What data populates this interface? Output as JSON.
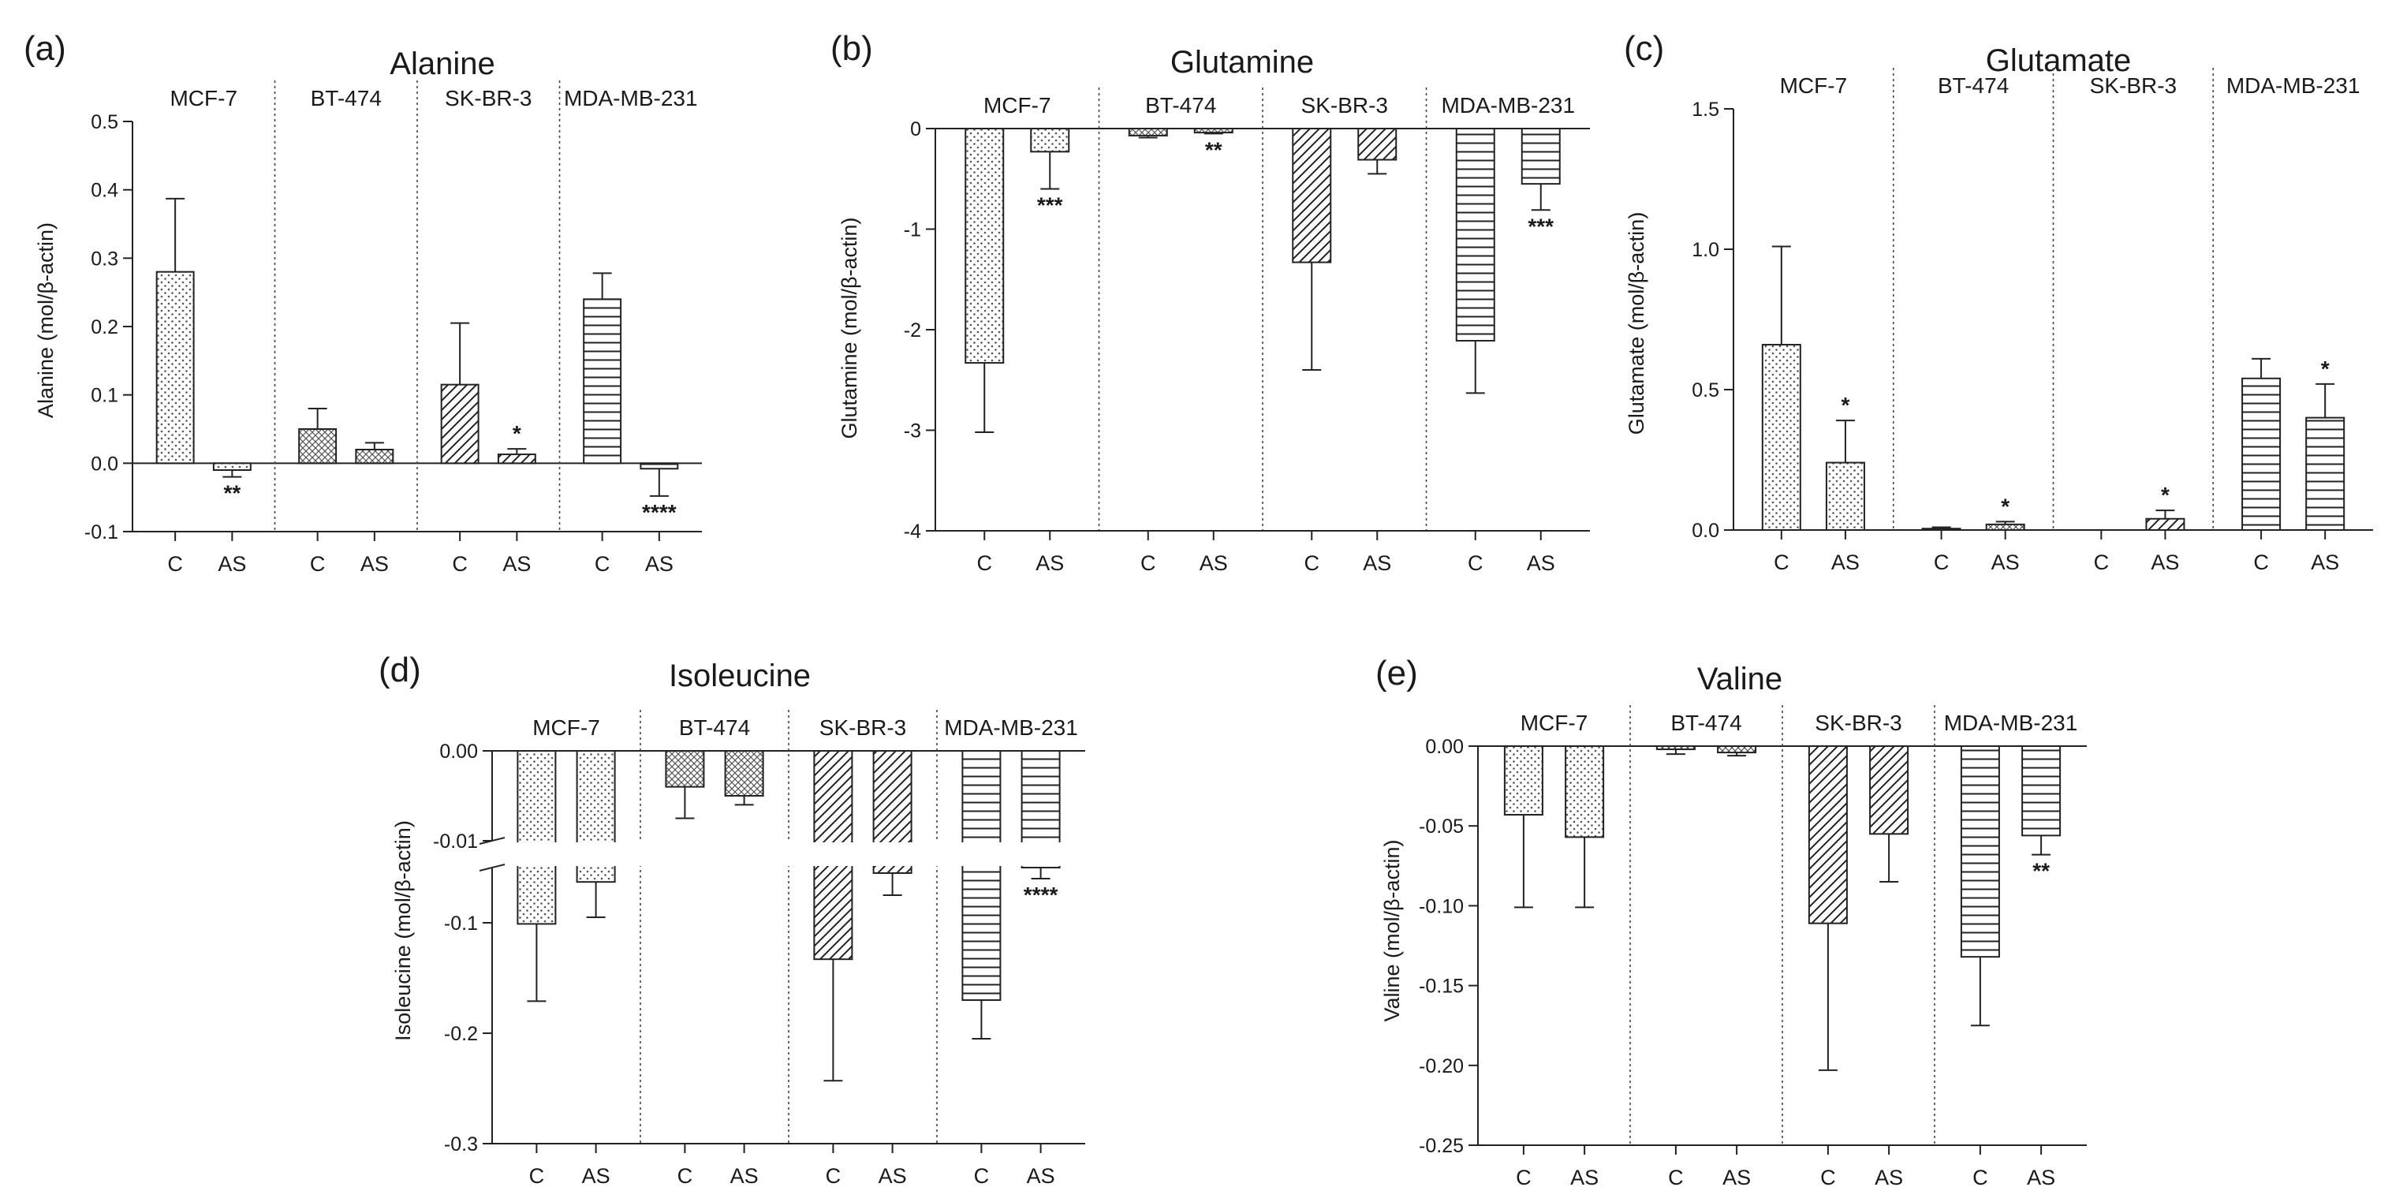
{
  "figure": {
    "x_categories": [
      "C",
      "AS"
    ],
    "cell_lines": [
      "MCF-7",
      "BT-474",
      "SK-BR-3",
      "MDA-MB-231"
    ]
  },
  "chart_data": [
    {
      "id": "a",
      "panel_label": "(a)",
      "type": "bar",
      "title": "Alanine",
      "ylabel": "Alanine (mol/β-actin)",
      "ylim": [
        -0.1,
        0.5
      ],
      "yticks": [
        -0.1,
        0.0,
        0.1,
        0.2,
        0.3,
        0.4,
        0.5
      ],
      "ytick_labels": [
        "-0.1",
        "0.0",
        "0.1",
        "0.2",
        "0.3",
        "0.4",
        "0.5"
      ],
      "groups": [
        {
          "cell": "MCF-7",
          "pattern": "dots",
          "bars": [
            {
              "x": "C",
              "value": 0.28,
              "err": 0.107,
              "sig": ""
            },
            {
              "x": "AS",
              "value": -0.01,
              "err": 0.01,
              "sig": "**"
            }
          ]
        },
        {
          "cell": "BT-474",
          "pattern": "mesh",
          "bars": [
            {
              "x": "C",
              "value": 0.05,
              "err": 0.03,
              "sig": ""
            },
            {
              "x": "AS",
              "value": 0.02,
              "err": 0.01,
              "sig": ""
            }
          ]
        },
        {
          "cell": "SK-BR-3",
          "pattern": "diag",
          "bars": [
            {
              "x": "C",
              "value": 0.115,
              "err": 0.09,
              "sig": ""
            },
            {
              "x": "AS",
              "value": 0.013,
              "err": 0.008,
              "sig": "*"
            }
          ]
        },
        {
          "cell": "MDA-MB-231",
          "pattern": "horiz",
          "bars": [
            {
              "x": "C",
              "value": 0.24,
              "err": 0.038,
              "sig": ""
            },
            {
              "x": "AS",
              "value": -0.008,
              "err": 0.04,
              "sig": "****"
            }
          ]
        }
      ]
    },
    {
      "id": "b",
      "panel_label": "(b)",
      "type": "bar",
      "title": "Glutamine",
      "ylabel": "Glutamine (mol/β-actin)",
      "ylim": [
        -4,
        0
      ],
      "yticks": [
        -4,
        -3,
        -2,
        -1,
        0
      ],
      "ytick_labels": [
        "-4",
        "-3",
        "-2",
        "-1",
        "0"
      ],
      "groups": [
        {
          "cell": "MCF-7",
          "pattern": "dots",
          "bars": [
            {
              "x": "C",
              "value": -2.33,
              "err": 0.69,
              "sig": ""
            },
            {
              "x": "AS",
              "value": -0.23,
              "err": 0.37,
              "sig": "***"
            }
          ]
        },
        {
          "cell": "BT-474",
          "pattern": "mesh",
          "bars": [
            {
              "x": "C",
              "value": -0.07,
              "err": 0.02,
              "sig": ""
            },
            {
              "x": "AS",
              "value": -0.04,
              "err": 0.01,
              "sig": "**"
            }
          ]
        },
        {
          "cell": "SK-BR-3",
          "pattern": "diag",
          "bars": [
            {
              "x": "C",
              "value": -1.33,
              "err": 1.07,
              "sig": ""
            },
            {
              "x": "AS",
              "value": -0.31,
              "err": 0.14,
              "sig": ""
            }
          ]
        },
        {
          "cell": "MDA-MB-231",
          "pattern": "horiz",
          "bars": [
            {
              "x": "C",
              "value": -2.11,
              "err": 0.52,
              "sig": ""
            },
            {
              "x": "AS",
              "value": -0.55,
              "err": 0.26,
              "sig": "***"
            }
          ]
        }
      ]
    },
    {
      "id": "c",
      "panel_label": "(c)",
      "type": "bar",
      "title": "Glutamate",
      "ylabel": "Glutamate (mol/β-actin)",
      "ylim": [
        0,
        1.5
      ],
      "yticks": [
        0.0,
        0.5,
        1.0,
        1.5
      ],
      "ytick_labels": [
        "0.0",
        "0.5",
        "1.0",
        "1.5"
      ],
      "groups": [
        {
          "cell": "MCF-7",
          "pattern": "dots",
          "bars": [
            {
              "x": "C",
              "value": 0.66,
              "err": 0.35,
              "sig": ""
            },
            {
              "x": "AS",
              "value": 0.24,
              "err": 0.15,
              "sig": "*"
            }
          ]
        },
        {
          "cell": "BT-474",
          "pattern": "mesh",
          "bars": [
            {
              "x": "C",
              "value": 0.005,
              "err": 0.005,
              "sig": ""
            },
            {
              "x": "AS",
              "value": 0.02,
              "err": 0.01,
              "sig": "*"
            }
          ]
        },
        {
          "cell": "SK-BR-3",
          "pattern": "diag",
          "bars": [
            {
              "x": "C",
              "value": 0.0,
              "err": 0.0,
              "sig": ""
            },
            {
              "x": "AS",
              "value": 0.04,
              "err": 0.03,
              "sig": "*"
            }
          ]
        },
        {
          "cell": "MDA-MB-231",
          "pattern": "horiz",
          "bars": [
            {
              "x": "C",
              "value": 0.54,
              "err": 0.07,
              "sig": ""
            },
            {
              "x": "AS",
              "value": 0.4,
              "err": 0.12,
              "sig": "*"
            }
          ]
        }
      ]
    },
    {
      "id": "d",
      "panel_label": "(d)",
      "type": "bar",
      "title": "Isoleucine",
      "ylabel": "Isoleucine (mol/β-actin)",
      "ylim": [
        -0.3,
        0
      ],
      "axis_break": {
        "upper_range": [
          -0.01,
          0.0
        ],
        "lower_range": [
          -0.3,
          -0.05
        ]
      },
      "yticks": [
        0.0,
        -0.01,
        -0.1,
        -0.2,
        -0.3
      ],
      "ytick_labels": [
        "0.00",
        "-0.01",
        "-0.1",
        "-0.2",
        "-0.3"
      ],
      "groups": [
        {
          "cell": "MCF-7",
          "pattern": "dots",
          "bars": [
            {
              "x": "C",
              "value": -0.101,
              "err": 0.07,
              "sig": ""
            },
            {
              "x": "AS",
              "value": -0.063,
              "err": 0.032,
              "sig": ""
            }
          ]
        },
        {
          "cell": "BT-474",
          "pattern": "mesh",
          "bars": [
            {
              "x": "C",
              "value": -0.004,
              "err": 0.0035,
              "sig": ""
            },
            {
              "x": "AS",
              "value": -0.005,
              "err": 0.001,
              "sig": ""
            }
          ]
        },
        {
          "cell": "SK-BR-3",
          "pattern": "diag",
          "bars": [
            {
              "x": "C",
              "value": -0.133,
              "err": 0.11,
              "sig": ""
            },
            {
              "x": "AS",
              "value": -0.055,
              "err": 0.02,
              "sig": ""
            }
          ]
        },
        {
          "cell": "MDA-MB-231",
          "pattern": "horiz",
          "bars": [
            {
              "x": "C",
              "value": -0.17,
              "err": 0.035,
              "sig": ""
            },
            {
              "x": "AS",
              "value": -0.05,
              "err": 0.01,
              "sig": "****"
            }
          ]
        }
      ]
    },
    {
      "id": "e",
      "panel_label": "(e)",
      "type": "bar",
      "title": "Valine",
      "ylabel": "Valine (mol/β-actin)",
      "ylim": [
        -0.25,
        0
      ],
      "yticks": [
        0.0,
        -0.05,
        -0.1,
        -0.15,
        -0.2,
        -0.25
      ],
      "ytick_labels": [
        "0.00",
        "-0.05",
        "-0.10",
        "-0.15",
        "-0.20",
        "-0.25"
      ],
      "groups": [
        {
          "cell": "MCF-7",
          "pattern": "dots",
          "bars": [
            {
              "x": "C",
              "value": -0.043,
              "err": 0.058,
              "sig": ""
            },
            {
              "x": "AS",
              "value": -0.057,
              "err": 0.044,
              "sig": ""
            }
          ]
        },
        {
          "cell": "BT-474",
          "pattern": "mesh",
          "bars": [
            {
              "x": "C",
              "value": -0.002,
              "err": 0.003,
              "sig": ""
            },
            {
              "x": "AS",
              "value": -0.004,
              "err": 0.002,
              "sig": ""
            }
          ]
        },
        {
          "cell": "SK-BR-3",
          "pattern": "diag",
          "bars": [
            {
              "x": "C",
              "value": -0.111,
              "err": 0.092,
              "sig": ""
            },
            {
              "x": "AS",
              "value": -0.055,
              "err": 0.03,
              "sig": ""
            }
          ]
        },
        {
          "cell": "MDA-MB-231",
          "pattern": "horiz",
          "bars": [
            {
              "x": "C",
              "value": -0.132,
              "err": 0.043,
              "sig": ""
            },
            {
              "x": "AS",
              "value": -0.056,
              "err": 0.012,
              "sig": "**"
            }
          ]
        }
      ]
    }
  ]
}
